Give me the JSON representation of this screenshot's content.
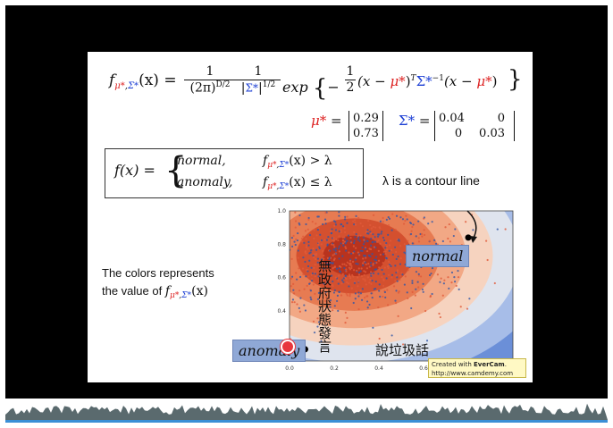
{
  "formula": {
    "f_label": "f",
    "sub_mu": "μ*",
    "sub_sep": ",",
    "sub_sigma": "Σ*",
    "lhs_arg": "(x) =",
    "frac1_num": "1",
    "frac1_den": "(2π)",
    "frac1_exp": "D/2",
    "frac2_num": "1",
    "frac2_den_left": "|",
    "frac2_den_sigma": "Σ*",
    "frac2_den_right": "|",
    "frac2_exp": "1/2",
    "exp_word": "exp",
    "brace_open": "{",
    "minus": "−",
    "half_num": "1",
    "half_den": "2",
    "paren1_open": "(x −",
    "mu1": "μ*",
    "paren1_close": ")",
    "transpose": "T",
    "sigma_inv": "Σ*",
    "sigma_inv_exp": "−1",
    "paren2_open": "(x −",
    "mu2": "μ*",
    "paren2_close": ")",
    "brace_close": "}"
  },
  "params": {
    "mu_label": "μ*",
    "mu_eq": "=",
    "mu_values": [
      "0.29",
      "0.73"
    ],
    "sigma_label": "Σ*",
    "sigma_eq": "=",
    "sigma_row1": [
      "0.04",
      "0"
    ],
    "sigma_row2": [
      "0",
      "0.03"
    ]
  },
  "cases": {
    "lhs": "f(x) =",
    "case1_word": "normal,",
    "case1_cond": "(x) > λ",
    "case2_word": "anomaly,",
    "case2_cond": "(x) ≤ λ",
    "f": "f",
    "sub_mu": "μ*",
    "sub_sep": ",",
    "sub_sigma": "Σ*"
  },
  "annotations": {
    "contour_note": "λ is a contour line",
    "colors_line1": "The colors represents",
    "colors_line2_prefix": "the value of",
    "colors_line2_suffix": "(x)",
    "normal_label": "normal",
    "anomaly_label": "anomaly",
    "subtitle_cjk": "說垃圾話",
    "vertical_cjk": [
      "無",
      "政",
      "府",
      "狀",
      "態",
      "發",
      "言"
    ]
  },
  "chart_data": {
    "type": "scatter",
    "xlim": [
      0.0,
      1.0
    ],
    "ylim": [
      0.1,
      1.0
    ],
    "x_ticks": [
      "0.0",
      "0.2",
      "0.4",
      "0.6"
    ],
    "y_ticks": [
      "0.2",
      "0.4",
      "0.6",
      "0.8",
      "1.0"
    ],
    "markers": [
      {
        "label": "normal",
        "x": 0.8,
        "y": 0.84
      },
      {
        "label": "anomaly",
        "x": 0.07,
        "y": 0.17
      }
    ]
  },
  "watermark": {
    "line1_prefix": "Created with ",
    "line1_brand": "EverCam",
    "line1_suffix": ".",
    "line2": "http://www.camdemy.com"
  },
  "colors": {
    "mu_red": "#d22222",
    "sigma_blue": "#1c3fd4",
    "label_bg": "#8fa8d6",
    "timeline_waveform": "#5a6a6e",
    "timeline_bar": "#3a8fd6"
  }
}
